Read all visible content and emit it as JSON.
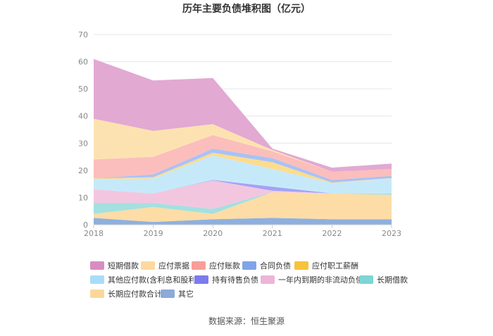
{
  "title": "历年主要负债堆积图（亿元）",
  "source": "数据来源：恒生聚源",
  "chart_data": {
    "type": "area",
    "stacked": true,
    "title": "历年主要负债堆积图（亿元）",
    "x": [
      "2018",
      "2019",
      "2020",
      "2021",
      "2022",
      "2023"
    ],
    "ylim": [
      0,
      70
    ],
    "yticks": [
      "0",
      "10",
      "20",
      "30",
      "40",
      "50",
      "60",
      "70"
    ],
    "grid": true,
    "legend_position": "bottom",
    "series": [
      {
        "name": "其它",
        "color": "#8DB0E0",
        "values": [
          2.5,
          1.0,
          2.0,
          2.5,
          2.0,
          2.0
        ]
      },
      {
        "name": "长期应付款合计",
        "color": "#FDDCA6",
        "values": [
          1.5,
          5.5,
          2.0,
          9.5,
          9.5,
          9.0
        ]
      },
      {
        "name": "长期借款",
        "color": "#A3E0E0",
        "values": [
          4.0,
          1.5,
          1.8,
          0.0,
          0.0,
          0.5
        ]
      },
      {
        "name": "一年内到期的非流动负债",
        "color": "#F3C6DF",
        "values": [
          5.0,
          3.5,
          10.5,
          0.5,
          0.0,
          0.0
        ]
      },
      {
        "name": "持有待售负债",
        "color": "#A3A3F5",
        "values": [
          0.0,
          0.0,
          0.2,
          1.5,
          0.0,
          0.0
        ]
      },
      {
        "name": "其他应付款(含利息和股利)",
        "color": "#C6E9FA",
        "values": [
          3.8,
          5.5,
          9.0,
          6.5,
          3.8,
          5.5
        ]
      },
      {
        "name": "应付职工薪酬",
        "color": "#FDDC8E",
        "values": [
          0.2,
          0.5,
          1.0,
          2.5,
          0.2,
          0.2
        ]
      },
      {
        "name": "合同负债",
        "color": "#A8C2F6",
        "values": [
          0.0,
          1.0,
          1.5,
          1.5,
          1.0,
          0.8
        ]
      },
      {
        "name": "应付账款",
        "color": "#FBBEBC",
        "values": [
          7.0,
          6.5,
          5.0,
          2.5,
          3.0,
          2.5
        ]
      },
      {
        "name": "应付票据",
        "color": "#FDE2B1",
        "values": [
          15.0,
          9.5,
          4.0,
          0.5,
          0.0,
          0.0
        ]
      },
      {
        "name": "短期借款",
        "color": "#E2A9D2",
        "values": [
          22.0,
          18.6,
          17.0,
          0.5,
          1.5,
          2.0
        ]
      }
    ],
    "legend_order": [
      "短期借款",
      "应付票据",
      "应付账款",
      "合同负债",
      "应付职工薪酬",
      "其他应付款(含利息和股利)",
      "持有待售负债",
      "一年内到期的非流动负债",
      "长期借款",
      "长期应付款合计",
      "其它"
    ],
    "legend_swatch_colors": {
      "短期借款": "#D98CC2",
      "应付票据": "#FDD9A0",
      "应付账款": "#F89E99",
      "合同负债": "#7FA4EA",
      "应付职工薪酬": "#F8C33A",
      "其他应付款(含利息和股利)": "#A9DDF7",
      "持有待售负债": "#7B7BEE",
      "一年内到期的非流动负债": "#EDB5D8",
      "长期借款": "#7DD5D5",
      "长期应付款合计": "#FCD79A",
      "其它": "#8DAAD8"
    }
  }
}
